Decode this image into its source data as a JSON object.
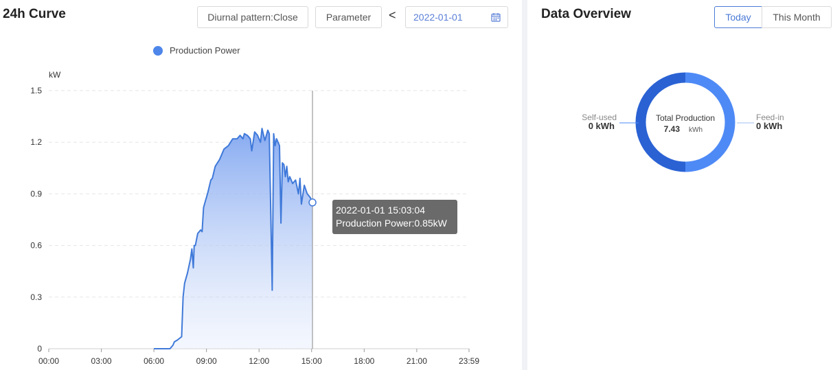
{
  "curve_panel": {
    "title": "24h Curve",
    "diurnal_button": "Diurnal pattern:Close",
    "parameter_button": "Parameter",
    "prev_label": "<",
    "date": "2022-01-01"
  },
  "tooltip": {
    "time": "2022-01-01 15:03:04",
    "line": "Production Power:0.85kW"
  },
  "overview_panel": {
    "title": "Data Overview",
    "tabs": [
      {
        "label": "Today",
        "active": true
      },
      {
        "label": "This Month",
        "active": false
      }
    ],
    "center_label": "Total Production",
    "center_value": "7.43",
    "center_unit": "kWh",
    "self_used_label": "Self-used",
    "self_used_value": "0 kWh",
    "feed_in_label": "Feed-in",
    "feed_in_value": "0 kWh",
    "colors": {
      "self_used": "#2a62d4",
      "feed_in": "#4e8af6"
    }
  },
  "chart_data": {
    "type": "area",
    "ylabel": "kW",
    "ylim": [
      0,
      1.5
    ],
    "yticks": [
      "0",
      "0.3",
      "0.6",
      "0.9",
      "1.2",
      "1.5"
    ],
    "xticks": [
      "00:00",
      "03:00",
      "06:00",
      "09:00",
      "12:00",
      "15:00",
      "18:00",
      "21:00",
      "23:59"
    ],
    "grid": true,
    "legend_position": "top-center",
    "highlight_time": "15:03",
    "highlight_value": 0.85,
    "colors": {
      "line": "#3f79d9",
      "fill_top": "#8fb2f3"
    },
    "series": [
      {
        "name": "Production Power",
        "x": [
          "06:00",
          "06:55",
          "07:05",
          "07:10",
          "07:20",
          "07:35",
          "07:40",
          "07:45",
          "07:55",
          "08:05",
          "08:10",
          "08:15",
          "08:18",
          "08:22",
          "08:30",
          "08:40",
          "08:45",
          "08:50",
          "08:55",
          "09:00",
          "09:05",
          "09:15",
          "09:20",
          "09:30",
          "09:45",
          "10:00",
          "10:15",
          "10:30",
          "10:45",
          "10:55",
          "11:05",
          "11:10",
          "11:20",
          "11:30",
          "11:35",
          "11:45",
          "11:55",
          "12:05",
          "12:10",
          "12:20",
          "12:30",
          "12:35",
          "12:45",
          "12:50",
          "12:55",
          "13:00",
          "13:05",
          "13:10",
          "13:15",
          "13:20",
          "13:25",
          "13:30",
          "13:35",
          "13:40",
          "13:45",
          "13:55",
          "14:05",
          "14:15",
          "14:20",
          "14:25",
          "14:35",
          "14:45",
          "14:55",
          "15:03"
        ],
        "y": [
          0,
          0,
          0.02,
          0.04,
          0.05,
          0.07,
          0.3,
          0.38,
          0.44,
          0.52,
          0.58,
          0.47,
          0.6,
          0.6,
          0.67,
          0.69,
          0.68,
          0.82,
          0.85,
          0.88,
          0.91,
          0.98,
          0.99,
          1.06,
          1.1,
          1.16,
          1.18,
          1.22,
          1.22,
          1.24,
          1.22,
          1.25,
          1.24,
          1.22,
          1.15,
          1.26,
          1.24,
          1.2,
          1.28,
          1.21,
          1.27,
          1.25,
          0.34,
          1.25,
          1.18,
          1.22,
          1.2,
          1.18,
          0.73,
          1.08,
          1.07,
          1.0,
          1.06,
          0.97,
          1.0,
          0.96,
          0.98,
          0.9,
          0.99,
          0.84,
          0.95,
          0.9,
          0.88,
          0.85
        ]
      }
    ]
  }
}
